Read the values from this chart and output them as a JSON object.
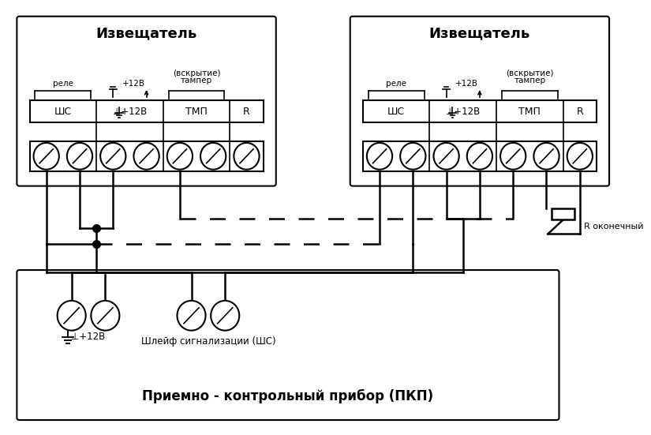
{
  "bg_color": "#ffffff",
  "lc": "#000000",
  "title1": "Извещатель",
  "title2": "Извещатель",
  "title_pkp": "Приемно - контрольный прибор (ПКП)",
  "lbl_rele": "реле",
  "lbl_12v": "+12В",
  "lbl_tamper1": "тампер",
  "lbl_tamper2": "(вскрытие)",
  "lbl_shc": "ШС",
  "lbl_12v_term": "⊥+12В",
  "lbl_tmp": "ТМП",
  "lbl_r": "R",
  "lbl_r_okon": "R оконечный",
  "lbl_shleyf": "Шлейф сигнализации (ШС)",
  "lbl_pkp_12v": "⊥+12В"
}
